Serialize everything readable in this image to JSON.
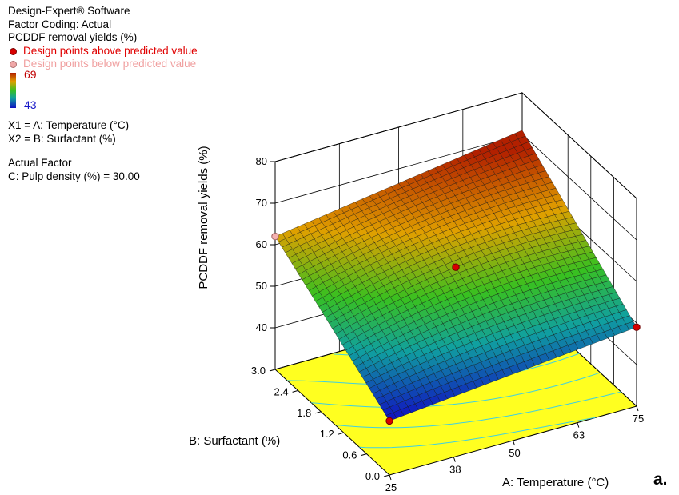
{
  "info": {
    "software": "Design-Expert® Software",
    "factor_coding": "Factor Coding: Actual",
    "response": "PCDDF removal yields (%)",
    "legend_above": "Design points above predicted value",
    "legend_below": "Design points below predicted value",
    "colorbar_max": "69",
    "colorbar_min": "43",
    "x1": "X1 = A: Temperature (°C)",
    "x2": "X2 = B: Surfactant (%)",
    "actual_factor_title": "Actual Factor",
    "actual_factor_value": "C: Pulp density (%) = 30.00"
  },
  "panel_letter": "a.",
  "colors": {
    "above_point": "#d80000",
    "below_point": "#f4b0b0",
    "floor": "#ffff20",
    "contour": "#40d0e0"
  },
  "chart_data": {
    "type": "surface",
    "title": "",
    "xlabel": "A: Temperature (°C)",
    "ylabel": "B: Surfactant (%)",
    "zlabel": "PCDDF removal yields (%)",
    "x_ticks": [
      "25",
      "38",
      "50",
      "63",
      "75"
    ],
    "y_ticks": [
      "0.0",
      "0.6",
      "1.2",
      "1.8",
      "2.4",
      "3.0"
    ],
    "z_ticks": [
      "40",
      "50",
      "60",
      "70",
      "80"
    ],
    "xlim": [
      25,
      75
    ],
    "ylim": [
      0,
      3
    ],
    "zlim": [
      30,
      80
    ],
    "colorbar_range": [
      43,
      69
    ],
    "corner_values": {
      "x25_y0": 43,
      "x75_y0": 49,
      "x25_y3": 62,
      "x75_y3": 71,
      "center_x50_y1.5": 59
    },
    "design_points": [
      {
        "x": 25,
        "y": 0,
        "z": 43,
        "type": "above"
      },
      {
        "x": 75,
        "y": 0,
        "z": 49,
        "type": "above"
      },
      {
        "x": 25,
        "y": 3,
        "z": 62,
        "type": "below"
      },
      {
        "x": 50,
        "y": 1.5,
        "z": 59,
        "type": "above"
      }
    ],
    "grid": true
  }
}
